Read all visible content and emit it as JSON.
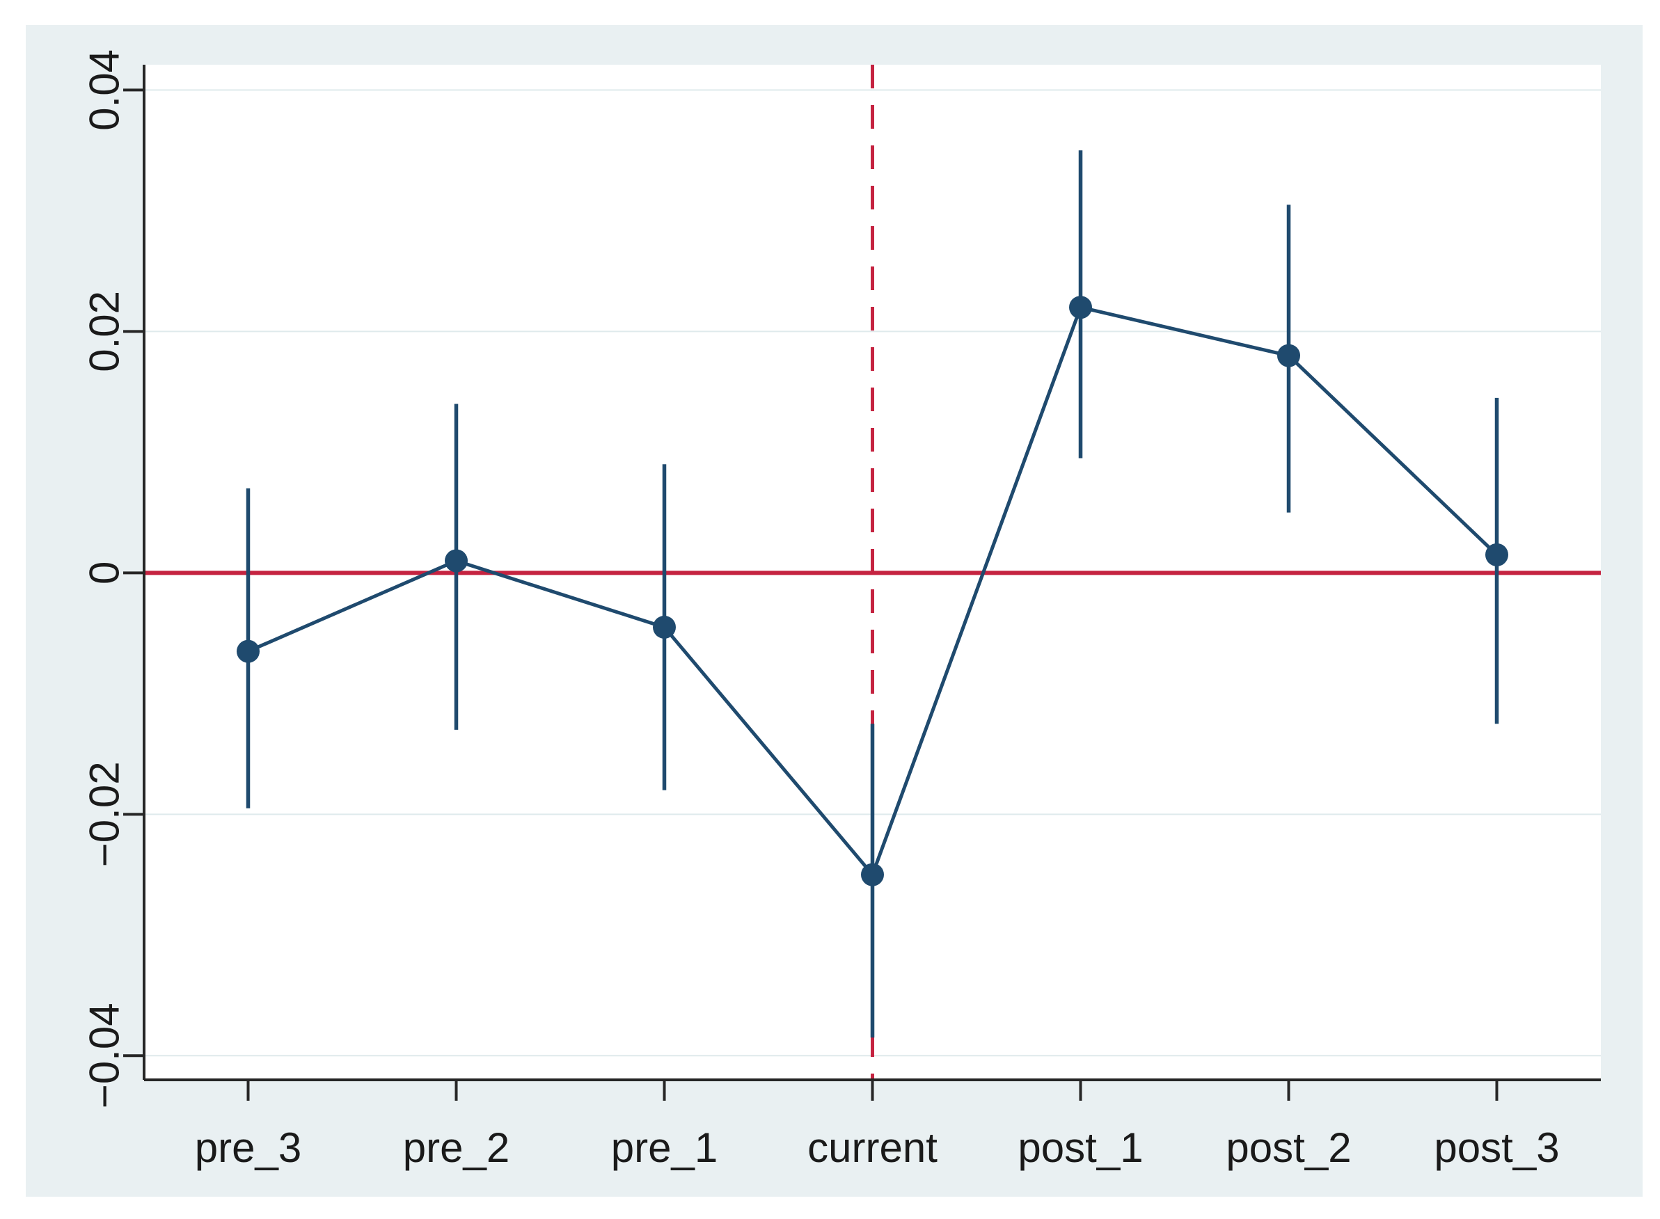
{
  "chart_data": {
    "type": "line",
    "subtype": "event-study coefficient plot with confidence intervals",
    "title": "",
    "xlabel": "",
    "ylabel": "",
    "legend": "none",
    "grid": true,
    "categories": [
      "pre_3",
      "pre_2",
      "pre_1",
      "current",
      "post_1",
      "post_2",
      "post_3"
    ],
    "series": [
      {
        "name": "estimate",
        "values": [
          -0.0065,
          0.001,
          -0.0045,
          -0.025,
          0.022,
          0.018,
          0.0015
        ]
      },
      {
        "name": "ci_lower",
        "values": [
          -0.0195,
          -0.013,
          -0.018,
          -0.0385,
          0.0095,
          0.005,
          -0.0125
        ]
      },
      {
        "name": "ci_upper",
        "values": [
          0.007,
          0.014,
          0.009,
          -0.0125,
          0.035,
          0.0305,
          0.0145
        ]
      }
    ],
    "y_ticks": [
      {
        "value": 0.04,
        "label": "0.04"
      },
      {
        "value": 0.02,
        "label": "0.02"
      },
      {
        "value": 0,
        "label": "0"
      },
      {
        "value": -0.02,
        "label": "−0.02"
      },
      {
        "value": -0.04,
        "label": "−0.04"
      }
    ],
    "ylim": [
      -0.042,
      0.0421
    ],
    "reference_lines": {
      "horizontal_zero": {
        "value": 0,
        "style": "solid"
      },
      "vertical": {
        "category": "current",
        "style": "dashed"
      }
    },
    "colors": {
      "series": "#1f4a6e",
      "reference": "#c52340",
      "plot_bg": "#ffffff",
      "panel_bg": "#e9f0f2",
      "gridline": "#dfeaec",
      "axis": "#262626",
      "tick_label": "#1a1a1a"
    }
  }
}
